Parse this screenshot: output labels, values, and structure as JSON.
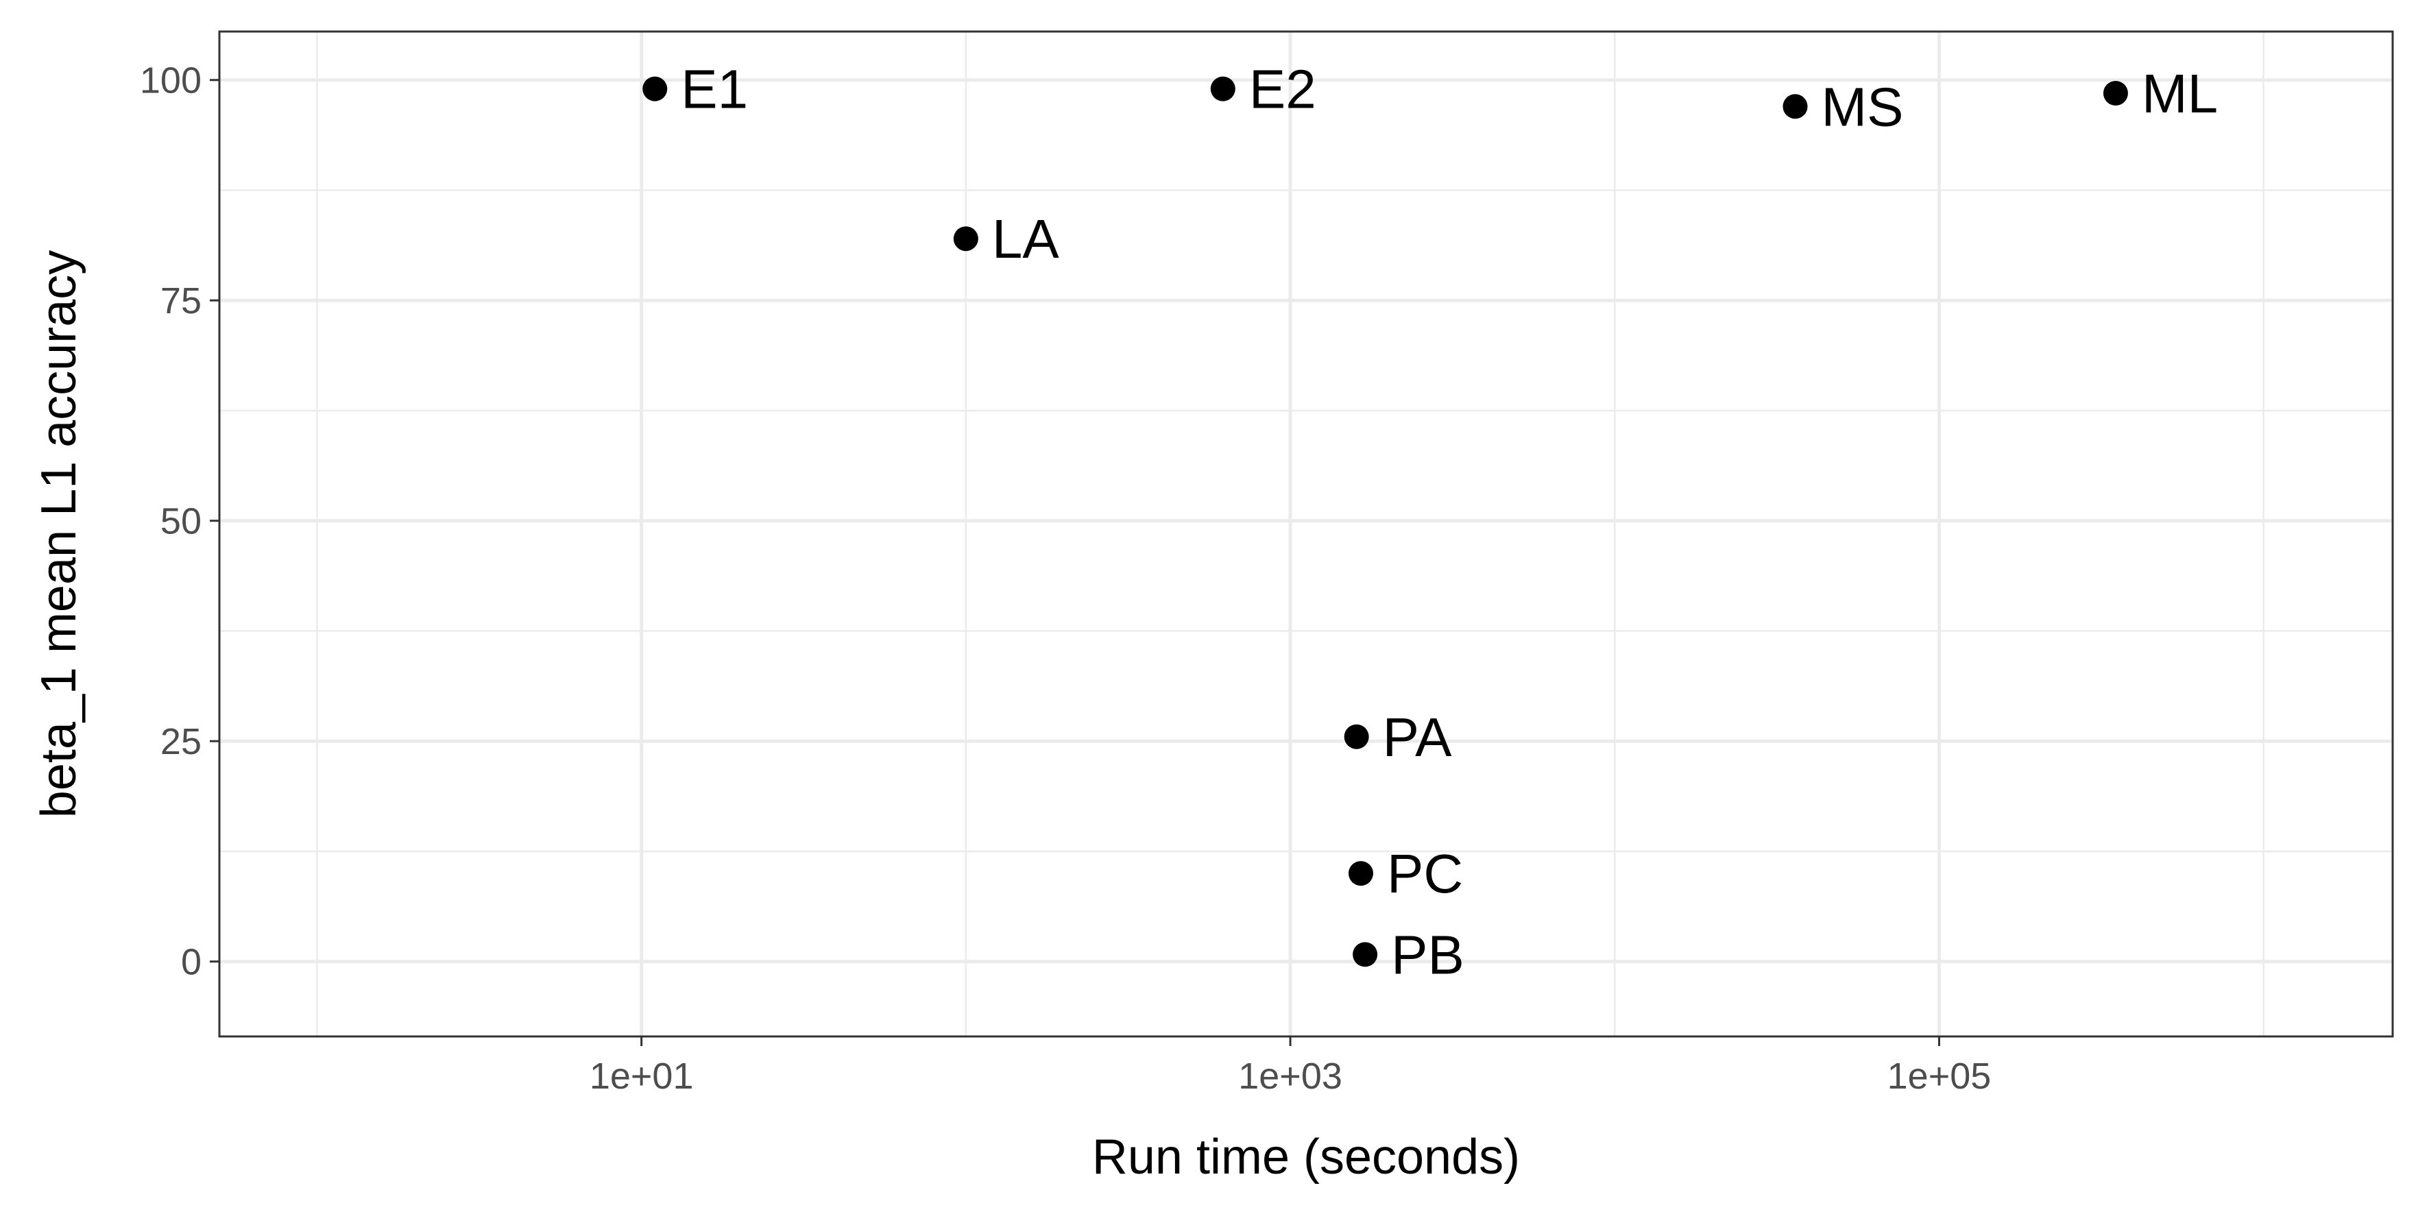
{
  "chart_data": {
    "type": "scatter",
    "xlabel": "Run time (seconds)",
    "ylabel": "beta_1 mean L1 accuracy",
    "x_scale": "log10",
    "xlim": [
      0.5,
      2500000
    ],
    "ylim": [
      -8.5,
      105.5
    ],
    "x_ticks": [
      {
        "value": 10,
        "label": "1e+01"
      },
      {
        "value": 1000,
        "label": "1e+03"
      },
      {
        "value": 100000,
        "label": "1e+05"
      }
    ],
    "x_minor_ticks": [
      1,
      100,
      10000,
      1000000
    ],
    "y_ticks": [
      {
        "value": 0,
        "label": "0"
      },
      {
        "value": 25,
        "label": "25"
      },
      {
        "value": 50,
        "label": "50"
      },
      {
        "value": 75,
        "label": "75"
      },
      {
        "value": 100,
        "label": "100"
      }
    ],
    "y_minor_ticks": [
      12.5,
      37.5,
      62.5,
      87.5
    ],
    "grid": true,
    "points": [
      {
        "label": "E1",
        "x": 11,
        "y": 99
      },
      {
        "label": "E2",
        "x": 620,
        "y": 99
      },
      {
        "label": "LA",
        "x": 100,
        "y": 82
      },
      {
        "label": "MS",
        "x": 36000,
        "y": 97
      },
      {
        "label": "ML",
        "x": 350000,
        "y": 98.5
      },
      {
        "label": "PA",
        "x": 1600,
        "y": 25.5
      },
      {
        "label": "PC",
        "x": 1650,
        "y": 10
      },
      {
        "label": "PB",
        "x": 1700,
        "y": 0.8
      }
    ]
  }
}
